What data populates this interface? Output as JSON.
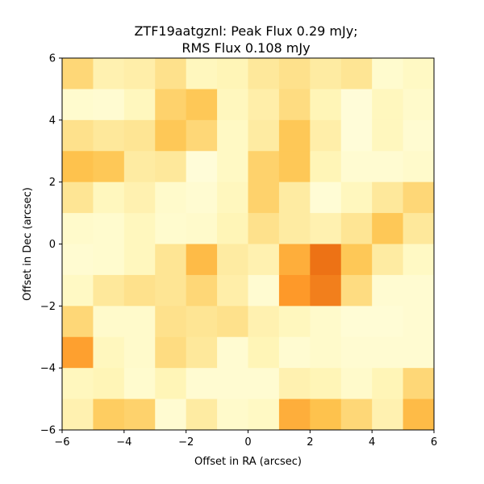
{
  "chart_data": {
    "type": "heatmap",
    "title_lines": [
      "ZTF19aatgznl: Peak Flux 0.29 mJy;",
      "RMS Flux 0.108 mJy"
    ],
    "xlabel": "Offset in RA (arcsec)",
    "ylabel": "Offset in Dec (arcsec)",
    "xlim": [
      -6,
      6
    ],
    "ylim": [
      -6,
      6
    ],
    "x_ticks": [
      -6,
      -4,
      -2,
      0,
      2,
      4,
      6
    ],
    "y_ticks": [
      -6,
      -4,
      -2,
      0,
      2,
      4,
      6
    ],
    "x_tick_labels": [
      "−6",
      "−4",
      "−2",
      "0",
      "2",
      "4",
      "6"
    ],
    "y_tick_labels": [
      "−6",
      "−4",
      "−2",
      "0",
      "2",
      "4",
      "6"
    ],
    "grid": false,
    "colormap": "YlOrBr",
    "color_range": [
      0,
      1
    ],
    "x_centers": [
      -5.5,
      -4.5,
      -3.5,
      -2.5,
      -1.5,
      -0.5,
      0.5,
      1.5,
      2.5,
      3.5,
      4.5,
      5.5
    ],
    "y_centers": [
      5.5,
      4.5,
      3.5,
      2.5,
      1.5,
      0.5,
      -0.5,
      -1.5,
      -2.5,
      -3.5,
      -4.5,
      -5.5
    ],
    "values": [
      [
        0.3,
        0.16,
        0.18,
        0.26,
        0.12,
        0.14,
        0.22,
        0.26,
        0.2,
        0.24,
        0.07,
        0.1
      ],
      [
        0.07,
        0.06,
        0.12,
        0.32,
        0.36,
        0.12,
        0.18,
        0.28,
        0.14,
        0.04,
        0.12,
        0.08
      ],
      [
        0.26,
        0.22,
        0.24,
        0.36,
        0.3,
        0.1,
        0.2,
        0.36,
        0.18,
        0.04,
        0.12,
        0.06
      ],
      [
        0.38,
        0.36,
        0.2,
        0.22,
        0.04,
        0.1,
        0.32,
        0.36,
        0.14,
        0.06,
        0.06,
        0.08
      ],
      [
        0.24,
        0.12,
        0.16,
        0.08,
        0.06,
        0.12,
        0.32,
        0.2,
        0.05,
        0.12,
        0.22,
        0.3
      ],
      [
        0.08,
        0.07,
        0.12,
        0.07,
        0.08,
        0.14,
        0.26,
        0.2,
        0.16,
        0.24,
        0.36,
        0.22
      ],
      [
        0.06,
        0.07,
        0.12,
        0.24,
        0.4,
        0.2,
        0.16,
        0.44,
        0.62,
        0.36,
        0.2,
        0.1
      ],
      [
        0.1,
        0.22,
        0.26,
        0.24,
        0.3,
        0.18,
        0.06,
        0.5,
        0.58,
        0.28,
        0.06,
        0.06
      ],
      [
        0.3,
        0.08,
        0.08,
        0.26,
        0.24,
        0.26,
        0.16,
        0.12,
        0.08,
        0.05,
        0.05,
        0.06
      ],
      [
        0.48,
        0.12,
        0.08,
        0.28,
        0.22,
        0.06,
        0.14,
        0.06,
        0.08,
        0.06,
        0.06,
        0.06
      ],
      [
        0.12,
        0.14,
        0.07,
        0.14,
        0.06,
        0.06,
        0.06,
        0.16,
        0.14,
        0.08,
        0.14,
        0.3
      ],
      [
        0.16,
        0.34,
        0.32,
        0.06,
        0.2,
        0.08,
        0.1,
        0.44,
        0.38,
        0.3,
        0.16,
        0.4
      ]
    ]
  }
}
